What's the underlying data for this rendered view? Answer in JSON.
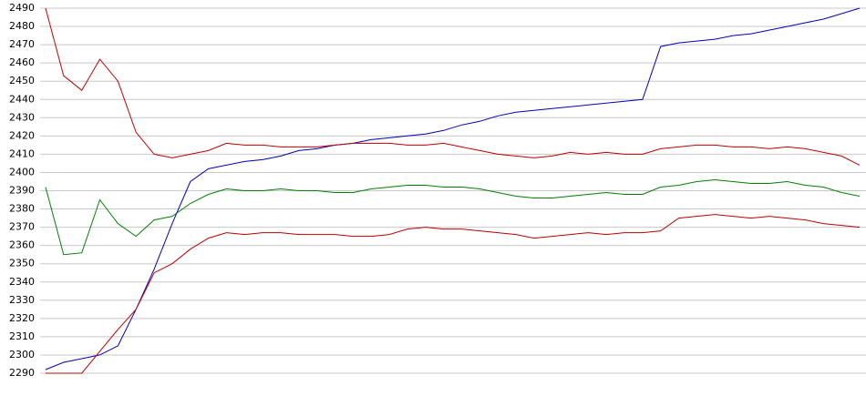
{
  "chart_data": {
    "type": "line",
    "ylim": [
      2290,
      2490
    ],
    "yticks": [
      2290,
      2300,
      2310,
      2320,
      2330,
      2340,
      2350,
      2360,
      2370,
      2380,
      2390,
      2400,
      2410,
      2420,
      2430,
      2440,
      2450,
      2460,
      2470,
      2480,
      2490
    ],
    "grid": true,
    "series": [
      {
        "color": "#0000c0",
        "values": [
          2292,
          2296,
          2298,
          2300,
          2305,
          2325,
          2347,
          2372,
          2395,
          2402,
          2404,
          2406,
          2407,
          2409,
          2412,
          2413,
          2415,
          2416,
          2418,
          2419,
          2420,
          2421,
          2423,
          2426,
          2428,
          2431,
          2433,
          2434,
          2435,
          2436,
          2437,
          2438,
          2439,
          2440,
          2469,
          2471,
          2472,
          2473,
          2475,
          2476,
          2478,
          2480,
          2482,
          2484,
          2487,
          2490
        ]
      },
      {
        "color": "#c00000",
        "values": [
          2490,
          2453,
          2445,
          2462,
          2450,
          2422,
          2410,
          2408,
          2410,
          2412,
          2416,
          2415,
          2415,
          2414,
          2414,
          2414,
          2415,
          2416,
          2416,
          2416,
          2415,
          2415,
          2416,
          2414,
          2412,
          2410,
          2409,
          2408,
          2409,
          2411,
          2410,
          2411,
          2410,
          2410,
          2413,
          2414,
          2415,
          2415,
          2414,
          2414,
          2413,
          2414,
          2413,
          2411,
          2409,
          2404
        ]
      },
      {
        "color": "#008000",
        "values": [
          2392,
          2355,
          2356,
          2385,
          2372,
          2365,
          2374,
          2376,
          2383,
          2388,
          2391,
          2390,
          2390,
          2391,
          2390,
          2390,
          2389,
          2389,
          2391,
          2392,
          2393,
          2393,
          2392,
          2392,
          2391,
          2389,
          2387,
          2386,
          2386,
          2387,
          2388,
          2389,
          2388,
          2388,
          2392,
          2393,
          2395,
          2396,
          2395,
          2394,
          2394,
          2395,
          2393,
          2392,
          2389,
          2387
        ]
      },
      {
        "color": "#c00000",
        "values": [
          2290,
          2290,
          2290,
          2302,
          2314,
          2325,
          2345,
          2350,
          2358,
          2364,
          2367,
          2366,
          2367,
          2367,
          2366,
          2366,
          2366,
          2365,
          2365,
          2366,
          2369,
          2370,
          2369,
          2369,
          2368,
          2367,
          2366,
          2364,
          2365,
          2366,
          2367,
          2366,
          2367,
          2367,
          2368,
          2375,
          2376,
          2377,
          2376,
          2375,
          2376,
          2375,
          2374,
          2372,
          2371,
          2370
        ]
      }
    ]
  }
}
